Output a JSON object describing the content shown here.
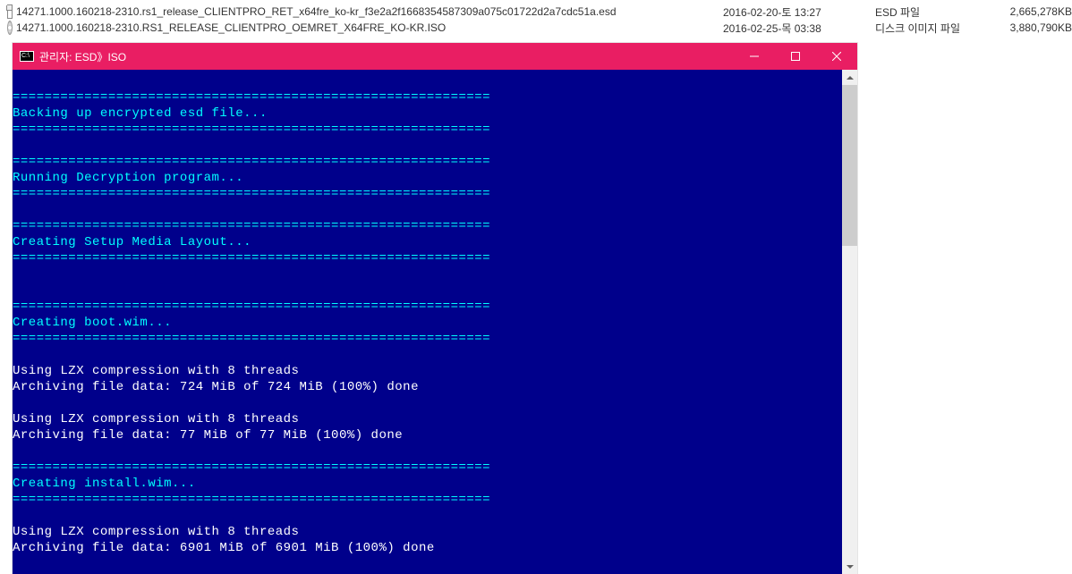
{
  "files": [
    {
      "icon": "file-esd",
      "name": "14271.1000.160218-2310.rs1_release_CLIENTPRO_RET_x64fre_ko-kr_f3e2a2f1668354587309a075c01722d2a7cdc51a.esd",
      "date": "2016-02-20-토 13:27",
      "type": "ESD 파일",
      "size": "2,665,278KB"
    },
    {
      "icon": "file-iso",
      "name": "14271.1000.160218-2310.RS1_RELEASE_CLIENTPRO_OEMRET_X64FRE_KO-KR.ISO",
      "date": "2016-02-25-목 03:38",
      "type": "디스크 이미지 파일",
      "size": "3,880,790KB"
    }
  ],
  "window": {
    "title": "관리자:  ESD》ISO",
    "titlebar_bg": "#e91e63",
    "console_bg": "#00008b",
    "text_color": "#ffffff",
    "accent_color": "#00ffff",
    "separator": "============================================================",
    "lines": [
      {
        "text": "",
        "color": "normal"
      },
      {
        "text": "============================================================",
        "color": "cyan"
      },
      {
        "text": "Backing up encrypted esd file...",
        "color": "cyan"
      },
      {
        "text": "============================================================",
        "color": "cyan"
      },
      {
        "text": "",
        "color": "normal"
      },
      {
        "text": "============================================================",
        "color": "cyan"
      },
      {
        "text": "Running Decryption program...",
        "color": "cyan"
      },
      {
        "text": "============================================================",
        "color": "cyan"
      },
      {
        "text": "",
        "color": "normal"
      },
      {
        "text": "============================================================",
        "color": "cyan"
      },
      {
        "text": "Creating Setup Media Layout...",
        "color": "cyan"
      },
      {
        "text": "============================================================",
        "color": "cyan"
      },
      {
        "text": "",
        "color": "normal"
      },
      {
        "text": "",
        "color": "normal"
      },
      {
        "text": "============================================================",
        "color": "cyan"
      },
      {
        "text": "Creating boot.wim...",
        "color": "cyan"
      },
      {
        "text": "============================================================",
        "color": "cyan"
      },
      {
        "text": "",
        "color": "normal"
      },
      {
        "text": "Using LZX compression with 8 threads",
        "color": "normal"
      },
      {
        "text": "Archiving file data: 724 MiB of 724 MiB (100%) done",
        "color": "normal"
      },
      {
        "text": "",
        "color": "normal"
      },
      {
        "text": "Using LZX compression with 8 threads",
        "color": "normal"
      },
      {
        "text": "Archiving file data: 77 MiB of 77 MiB (100%) done",
        "color": "normal"
      },
      {
        "text": "",
        "color": "normal"
      },
      {
        "text": "============================================================",
        "color": "cyan"
      },
      {
        "text": "Creating install.wim...",
        "color": "cyan"
      },
      {
        "text": "============================================================",
        "color": "cyan"
      },
      {
        "text": "",
        "color": "normal"
      },
      {
        "text": "Using LZX compression with 8 threads",
        "color": "normal"
      },
      {
        "text": "Archiving file data: 6901 MiB of 6901 MiB (100%) done",
        "color": "normal"
      }
    ]
  }
}
